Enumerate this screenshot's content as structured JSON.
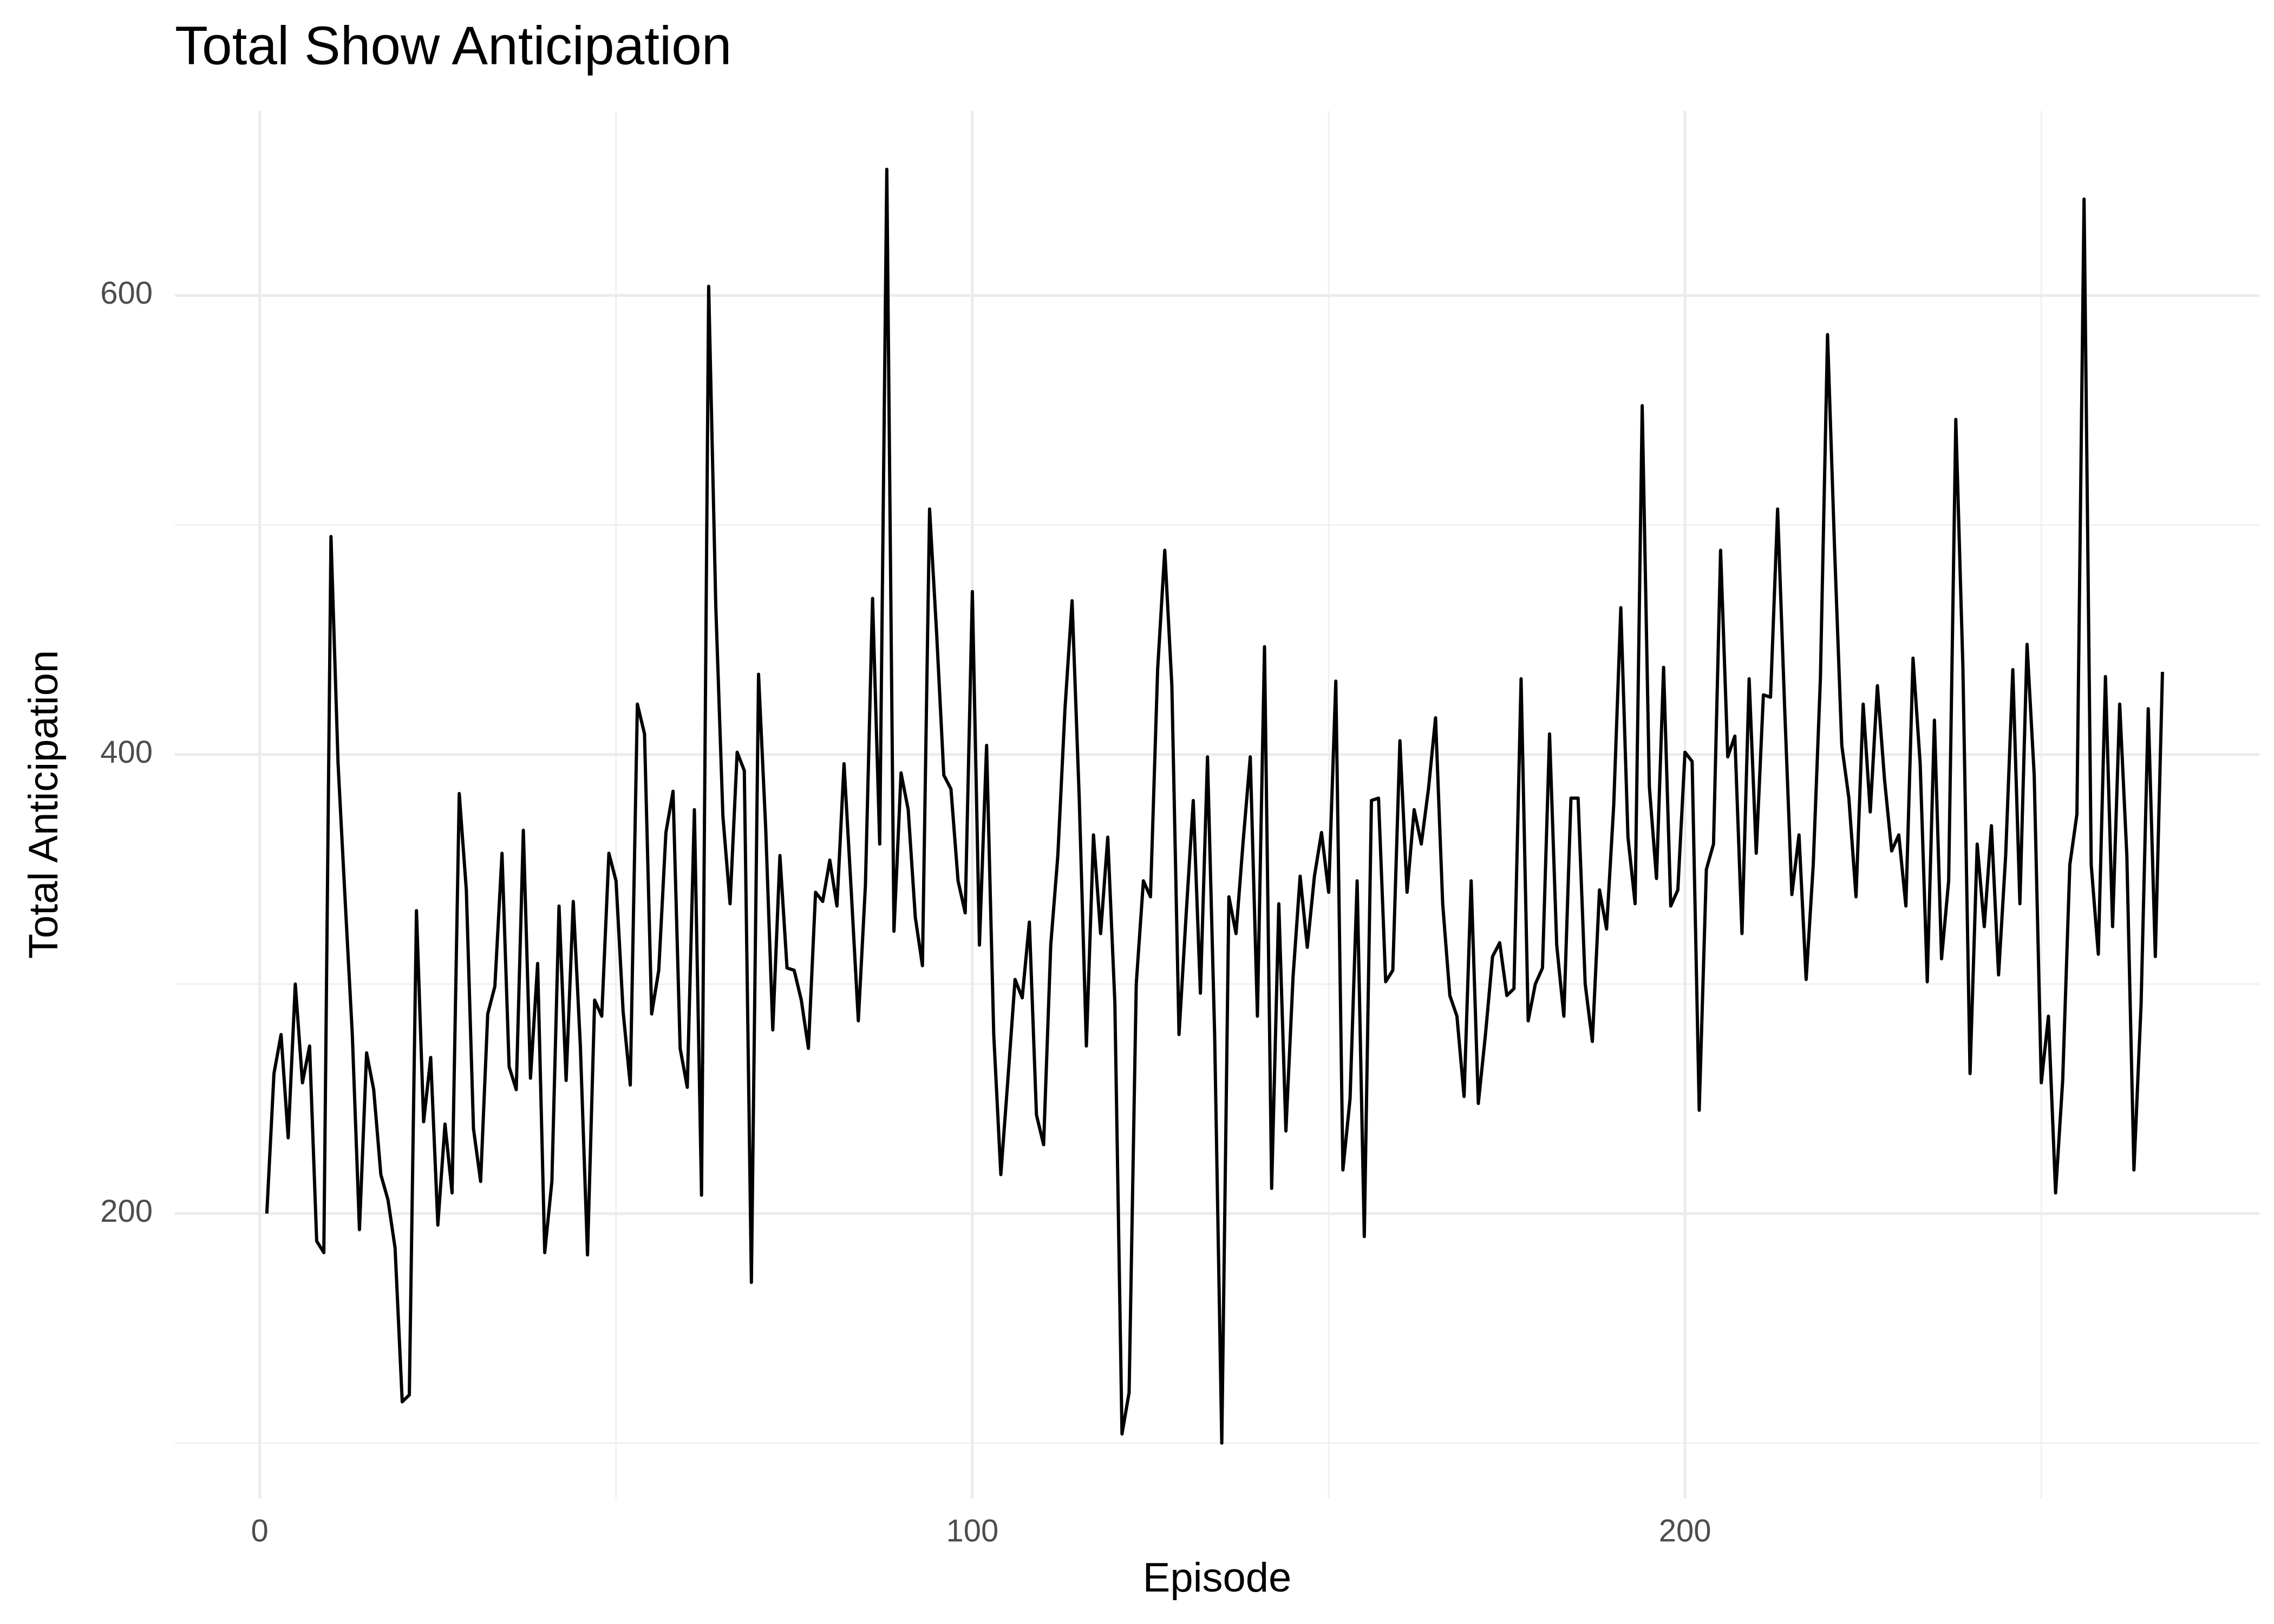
{
  "chart_data": {
    "type": "line",
    "title": "Total Show Anticipation",
    "x_label": "Episode",
    "y_label": "Total Anticipation",
    "x": [
      1,
      2,
      3,
      4,
      5,
      6,
      7,
      8,
      9,
      10,
      11,
      12,
      13,
      14,
      15,
      16,
      17,
      18,
      19,
      20,
      21,
      22,
      23,
      24,
      25,
      26,
      27,
      28,
      29,
      30,
      31,
      32,
      33,
      34,
      35,
      36,
      37,
      38,
      39,
      40,
      41,
      42,
      43,
      44,
      45,
      46,
      47,
      48,
      49,
      50,
      51,
      52,
      53,
      54,
      55,
      56,
      57,
      58,
      59,
      60,
      61,
      62,
      63,
      64,
      65,
      66,
      67,
      68,
      69,
      70,
      71,
      72,
      73,
      74,
      75,
      76,
      77,
      78,
      79,
      80,
      81,
      82,
      83,
      84,
      85,
      86,
      87,
      88,
      89,
      90,
      91,
      92,
      93,
      94,
      95,
      96,
      97,
      98,
      99,
      100,
      101,
      102,
      103,
      104,
      105,
      106,
      107,
      108,
      109,
      110,
      111,
      112,
      113,
      114,
      115,
      116,
      117,
      118,
      119,
      120,
      121,
      122,
      123,
      124,
      125,
      126,
      127,
      128,
      129,
      130,
      131,
      132,
      133,
      134,
      135,
      136,
      137,
      138,
      139,
      140,
      141,
      142,
      143,
      144,
      145,
      146,
      147,
      148,
      149,
      150,
      151,
      152,
      153,
      154,
      155,
      156,
      157,
      158,
      159,
      160,
      161,
      162,
      163,
      164,
      165,
      166,
      167,
      168,
      169,
      170,
      171,
      172,
      173,
      174,
      175,
      176,
      177,
      178,
      179,
      180,
      181,
      182,
      183,
      184,
      185,
      186,
      187,
      188,
      189,
      190,
      191,
      192,
      193,
      194,
      195,
      196,
      197,
      198,
      199,
      200,
      201,
      202,
      203,
      204,
      205,
      206,
      207,
      208,
      209,
      210,
      211,
      212,
      213,
      214,
      215,
      216,
      217,
      218,
      219,
      220,
      221,
      222,
      223,
      224,
      225,
      226,
      227,
      228,
      229,
      230,
      231,
      232,
      233,
      234,
      235,
      236,
      237,
      238,
      239,
      240,
      241,
      242,
      243,
      244,
      245,
      246,
      247,
      248,
      249,
      250,
      251,
      252,
      253,
      254,
      255,
      256,
      257,
      258,
      259,
      260,
      261,
      262,
      263,
      264,
      265,
      266,
      267
    ],
    "series": [
      {
        "name": "Total Anticipation",
        "color": "#000000",
        "values": [
          200,
          261,
          278,
          233,
          300,
          257,
          273,
          188,
          183,
          495,
          396,
          336,
          278,
          193,
          270,
          254,
          217,
          206,
          185,
          118,
          121,
          332,
          240,
          268,
          195,
          239,
          209,
          383,
          341,
          237,
          214,
          287,
          299,
          357,
          264,
          254,
          367,
          259,
          309,
          183,
          214,
          334,
          258,
          336,
          273,
          182,
          293,
          286,
          357,
          345,
          288,
          256,
          422,
          409,
          287,
          306,
          366,
          384,
          272,
          255,
          376,
          208,
          604,
          465,
          373,
          335,
          401,
          393,
          170,
          435,
          368,
          280,
          356,
          307,
          306,
          293,
          272,
          340,
          336,
          354,
          334,
          396,
          341,
          284,
          343,
          468,
          361,
          655,
          323,
          392,
          376,
          329,
          308,
          507,
          452,
          391,
          385,
          345,
          331,
          471,
          317,
          404,
          278,
          217,
          259,
          302,
          294,
          327,
          243,
          230,
          317,
          356,
          420,
          467,
          381,
          273,
          365,
          322,
          364,
          292,
          104,
          122,
          300,
          345,
          338,
          437,
          489,
          430,
          278,
          330,
          380,
          296,
          399,
          278,
          100,
          338,
          322,
          362,
          399,
          286,
          447,
          211,
          335,
          236,
          303,
          347,
          316,
          347,
          366,
          340,
          432,
          219,
          250,
          345,
          190,
          380,
          381,
          301,
          306,
          406,
          340,
          376,
          361,
          385,
          416,
          335,
          295,
          286,
          251,
          345,
          248,
          278,
          312,
          318,
          295,
          298,
          433,
          284,
          300,
          307,
          409,
          317,
          286,
          381,
          381,
          300,
          275,
          341,
          324,
          378,
          464,
          364,
          335,
          552,
          386,
          346,
          438,
          334,
          341,
          401,
          397,
          245,
          350,
          361,
          489,
          399,
          408,
          322,
          433,
          357,
          426,
          425,
          507,
          419,
          339,
          365,
          302,
          352,
          433,
          583,
          489,
          404,
          381,
          338,
          422,
          375,
          430,
          389,
          358,
          365,
          334,
          442,
          396,
          301,
          415,
          311,
          345,
          546,
          438,
          261,
          361,
          325,
          369,
          304,
          356,
          437,
          335,
          448,
          391,
          257,
          286,
          209,
          258,
          352,
          374,
          642,
          352,
          313,
          434,
          325,
          422,
          356,
          219,
          291,
          420,
          312,
          436
        ]
      }
    ],
    "xlim": [
      -11.9,
      280.6
    ],
    "ylim": [
      75.9,
      680.4
    ],
    "xticks": [
      0,
      100,
      200
    ],
    "yticks": [
      200,
      400,
      600
    ],
    "minor_xticks": [
      50,
      150,
      250
    ],
    "minor_yticks": [
      100,
      300,
      500
    ],
    "grid": true
  }
}
